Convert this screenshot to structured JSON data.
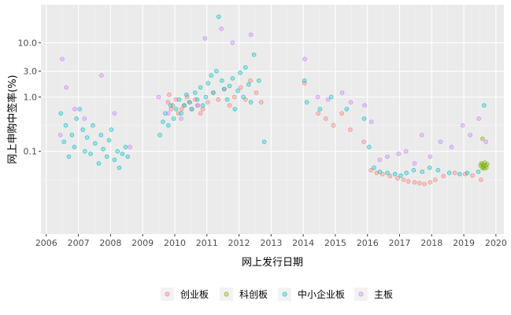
{
  "chart_data": {
    "type": "scatter",
    "title": "",
    "xlabel": "网上发行日期",
    "ylabel": "网上申购中签率(%)",
    "y_scale": "log10",
    "xlim": [
      "2005-11-01",
      "2020-04-01"
    ],
    "ylim": [
      0.003,
      50
    ],
    "x_ticks": [
      "2006",
      "2007",
      "2008",
      "2009",
      "2010",
      "2011",
      "2012",
      "2013",
      "2014",
      "2015",
      "2016",
      "2017",
      "2018",
      "2019",
      "2020"
    ],
    "y_ticks": [
      {
        "value": 0.1,
        "label": "0.1"
      },
      {
        "value": 1,
        "label": "1.0"
      },
      {
        "value": 3,
        "label": "3.0"
      },
      {
        "value": 10,
        "label": "10.0"
      }
    ],
    "y_minor_grid": [
      0.3,
      0.03
    ],
    "grid": true,
    "legend_position": "bottom",
    "series": [
      {
        "name": "创业板",
        "color": "#F8766D",
        "points": [
          [
            "2009-10-15",
            0.8
          ],
          [
            "2009-10-30",
            1.1
          ],
          [
            "2009-11-20",
            0.6
          ],
          [
            "2009-12-10",
            0.7
          ],
          [
            "2010-01-15",
            0.9
          ],
          [
            "2010-02-10",
            0.5
          ],
          [
            "2010-03-20",
            0.6
          ],
          [
            "2010-04-15",
            0.7
          ],
          [
            "2010-05-20",
            1.0
          ],
          [
            "2010-06-15",
            0.8
          ],
          [
            "2010-07-10",
            0.6
          ],
          [
            "2010-08-20",
            0.9
          ],
          [
            "2010-09-15",
            0.7
          ],
          [
            "2010-10-20",
            0.5
          ],
          [
            "2010-11-15",
            0.6
          ],
          [
            "2011-01-10",
            0.8
          ],
          [
            "2011-03-15",
            1.2
          ],
          [
            "2011-05-10",
            0.9
          ],
          [
            "2011-07-20",
            1.4
          ],
          [
            "2011-09-15",
            0.7
          ],
          [
            "2011-11-10",
            1.0
          ],
          [
            "2012-01-20",
            1.5
          ],
          [
            "2012-03-15",
            0.9
          ],
          [
            "2012-05-10",
            2.0
          ],
          [
            "2012-07-15",
            1.2
          ],
          [
            "2012-09-10",
            0.8
          ],
          [
            "2014-01-15",
            1.8
          ],
          [
            "2014-06-20",
            0.5
          ],
          [
            "2014-09-15",
            0.4
          ],
          [
            "2014-12-10",
            0.3
          ],
          [
            "2015-03-15",
            0.5
          ],
          [
            "2015-06-20",
            0.25
          ],
          [
            "2015-11-20",
            0.15
          ],
          [
            "2016-02-10",
            0.045
          ],
          [
            "2016-04-15",
            0.04
          ],
          [
            "2016-06-20",
            0.038
          ],
          [
            "2016-09-15",
            0.035
          ],
          [
            "2016-12-10",
            0.032
          ],
          [
            "2017-02-15",
            0.03
          ],
          [
            "2017-04-10",
            0.028
          ],
          [
            "2017-06-20",
            0.027
          ],
          [
            "2017-08-15",
            0.026
          ],
          [
            "2017-10-10",
            0.025
          ],
          [
            "2017-12-15",
            0.027
          ],
          [
            "2018-02-10",
            0.03
          ],
          [
            "2018-05-15",
            0.035
          ],
          [
            "2018-09-20",
            0.04
          ],
          [
            "2019-01-15",
            0.038
          ],
          [
            "2019-04-10",
            0.036
          ],
          [
            "2019-07-15",
            0.03
          ]
        ]
      },
      {
        "name": "科创板",
        "color": "#7CAE00",
        "points": [
          [
            "2019-07-10",
            0.055
          ],
          [
            "2019-07-20",
            0.06
          ],
          [
            "2019-07-28",
            0.05
          ],
          [
            "2019-08-05",
            0.058
          ],
          [
            "2019-08-12",
            0.052
          ],
          [
            "2019-08-20",
            0.048
          ],
          [
            "2019-08-26",
            0.062
          ],
          [
            "2019-09-05",
            0.055
          ],
          [
            "2019-09-15",
            0.05
          ],
          [
            "2019-09-25",
            0.058
          ],
          [
            "2019-08-01",
            0.17
          ]
        ]
      },
      {
        "name": "中小企业板",
        "color": "#00BFC4",
        "points": [
          [
            "2006-06-15",
            0.5
          ],
          [
            "2006-07-20",
            0.15
          ],
          [
            "2006-08-10",
            0.3
          ],
          [
            "2006-09-15",
            0.08
          ],
          [
            "2006-10-20",
            0.2
          ],
          [
            "2006-11-15",
            0.12
          ],
          [
            "2006-12-10",
            0.4
          ],
          [
            "2007-01-15",
            0.6
          ],
          [
            "2007-02-20",
            0.25
          ],
          [
            "2007-03-15",
            0.1
          ],
          [
            "2007-04-10",
            0.18
          ],
          [
            "2007-05-20",
            0.09
          ],
          [
            "2007-06-15",
            0.3
          ],
          [
            "2007-07-10",
            0.14
          ],
          [
            "2007-08-20",
            0.06
          ],
          [
            "2007-09-15",
            0.2
          ],
          [
            "2007-10-10",
            0.11
          ],
          [
            "2007-11-20",
            0.08
          ],
          [
            "2007-12-15",
            0.16
          ],
          [
            "2008-01-10",
            0.25
          ],
          [
            "2008-02-15",
            0.07
          ],
          [
            "2008-03-20",
            0.1
          ],
          [
            "2008-04-10",
            0.05
          ],
          [
            "2008-05-15",
            0.09
          ],
          [
            "2008-06-20",
            0.12
          ],
          [
            "2008-07-15",
            0.08
          ],
          [
            "2009-07-15",
            0.2
          ],
          [
            "2009-08-20",
            0.35
          ],
          [
            "2009-09-15",
            0.5
          ],
          [
            "2009-10-20",
            0.3
          ],
          [
            "2009-11-15",
            0.7
          ],
          [
            "2009-12-20",
            0.4
          ],
          [
            "2010-01-15",
            0.6
          ],
          [
            "2010-02-20",
            0.9
          ],
          [
            "2010-03-15",
            0.5
          ],
          [
            "2010-04-20",
            0.7
          ],
          [
            "2010-05-15",
            1.1
          ],
          [
            "2010-06-20",
            0.8
          ],
          [
            "2010-07-15",
            0.6
          ],
          [
            "2010-08-20",
            1.2
          ],
          [
            "2010-09-15",
            0.9
          ],
          [
            "2010-10-20",
            1.5
          ],
          [
            "2010-11-15",
            0.7
          ],
          [
            "2010-12-20",
            1.0
          ],
          [
            "2011-01-15",
            1.8
          ],
          [
            "2011-02-20",
            2.5
          ],
          [
            "2011-03-15",
            1.2
          ],
          [
            "2011-04-20",
            3.0
          ],
          [
            "2011-05-15",
            30.0
          ],
          [
            "2011-06-20",
            2.0
          ],
          [
            "2011-07-15",
            1.4
          ],
          [
            "2011-08-20",
            0.9
          ],
          [
            "2011-09-15",
            1.6
          ],
          [
            "2011-10-20",
            2.2
          ],
          [
            "2011-11-15",
            0.6
          ],
          [
            "2011-12-20",
            1.3
          ],
          [
            "2012-01-15",
            2.8
          ],
          [
            "2012-02-20",
            1.0
          ],
          [
            "2012-03-15",
            3.5
          ],
          [
            "2012-04-20",
            1.7
          ],
          [
            "2012-05-15",
            0.8
          ],
          [
            "2012-06-20",
            6.0
          ],
          [
            "2012-08-15",
            2.0
          ],
          [
            "2012-10-15",
            0.15
          ],
          [
            "2014-01-15",
            2.0
          ],
          [
            "2014-02-10",
            0.8
          ],
          [
            "2014-07-10",
            0.6
          ],
          [
            "2014-11-15",
            1.0
          ],
          [
            "2015-05-10",
            0.6
          ],
          [
            "2015-11-25",
            0.4
          ],
          [
            "2016-01-20",
            0.12
          ],
          [
            "2016-03-15",
            0.05
          ],
          [
            "2016-05-20",
            0.042
          ],
          [
            "2016-08-15",
            0.04
          ],
          [
            "2016-11-10",
            0.038
          ],
          [
            "2017-01-15",
            0.036
          ],
          [
            "2017-03-20",
            0.04
          ],
          [
            "2017-06-10",
            0.045
          ],
          [
            "2017-09-15",
            0.042
          ],
          [
            "2017-12-10",
            0.05
          ],
          [
            "2018-03-15",
            0.045
          ],
          [
            "2018-07-20",
            0.04
          ],
          [
            "2018-11-15",
            0.038
          ],
          [
            "2019-02-10",
            0.04
          ],
          [
            "2019-06-15",
            0.042
          ],
          [
            "2019-08-20",
            0.7
          ]
        ]
      },
      {
        "name": "主板",
        "color": "#C77CFF",
        "points": [
          [
            "2006-06-10",
            0.2
          ],
          [
            "2006-07-01",
            5.0
          ],
          [
            "2006-08-15",
            1.5
          ],
          [
            "2006-11-20",
            0.6
          ],
          [
            "2007-03-10",
            0.4
          ],
          [
            "2007-09-20",
            2.5
          ],
          [
            "2008-02-15",
            0.5
          ],
          [
            "2008-08-10",
            0.12
          ],
          [
            "2009-07-01",
            1.0
          ],
          [
            "2009-10-20",
            0.5
          ],
          [
            "2010-03-15",
            0.4
          ],
          [
            "2010-09-20",
            0.7
          ],
          [
            "2010-12-10",
            12.0
          ],
          [
            "2011-06-15",
            18.0
          ],
          [
            "2011-10-20",
            10.0
          ],
          [
            "2012-05-15",
            14.0
          ],
          [
            "2014-01-20",
            5.0
          ],
          [
            "2014-06-15",
            1.0
          ],
          [
            "2014-10-10",
            0.9
          ],
          [
            "2015-03-20",
            1.2
          ],
          [
            "2015-06-25",
            0.8
          ],
          [
            "2015-11-30",
            0.7
          ],
          [
            "2016-02-15",
            0.35
          ],
          [
            "2016-05-20",
            0.07
          ],
          [
            "2016-08-15",
            0.08
          ],
          [
            "2016-12-20",
            0.09
          ],
          [
            "2017-03-15",
            0.1
          ],
          [
            "2017-06-20",
            0.06
          ],
          [
            "2017-09-10",
            0.2
          ],
          [
            "2017-12-15",
            0.08
          ],
          [
            "2018-04-10",
            0.15
          ],
          [
            "2018-08-15",
            0.12
          ],
          [
            "2018-12-20",
            0.3
          ],
          [
            "2019-03-15",
            0.2
          ],
          [
            "2019-06-20",
            0.4
          ],
          [
            "2019-09-10",
            0.15
          ]
        ]
      }
    ]
  }
}
